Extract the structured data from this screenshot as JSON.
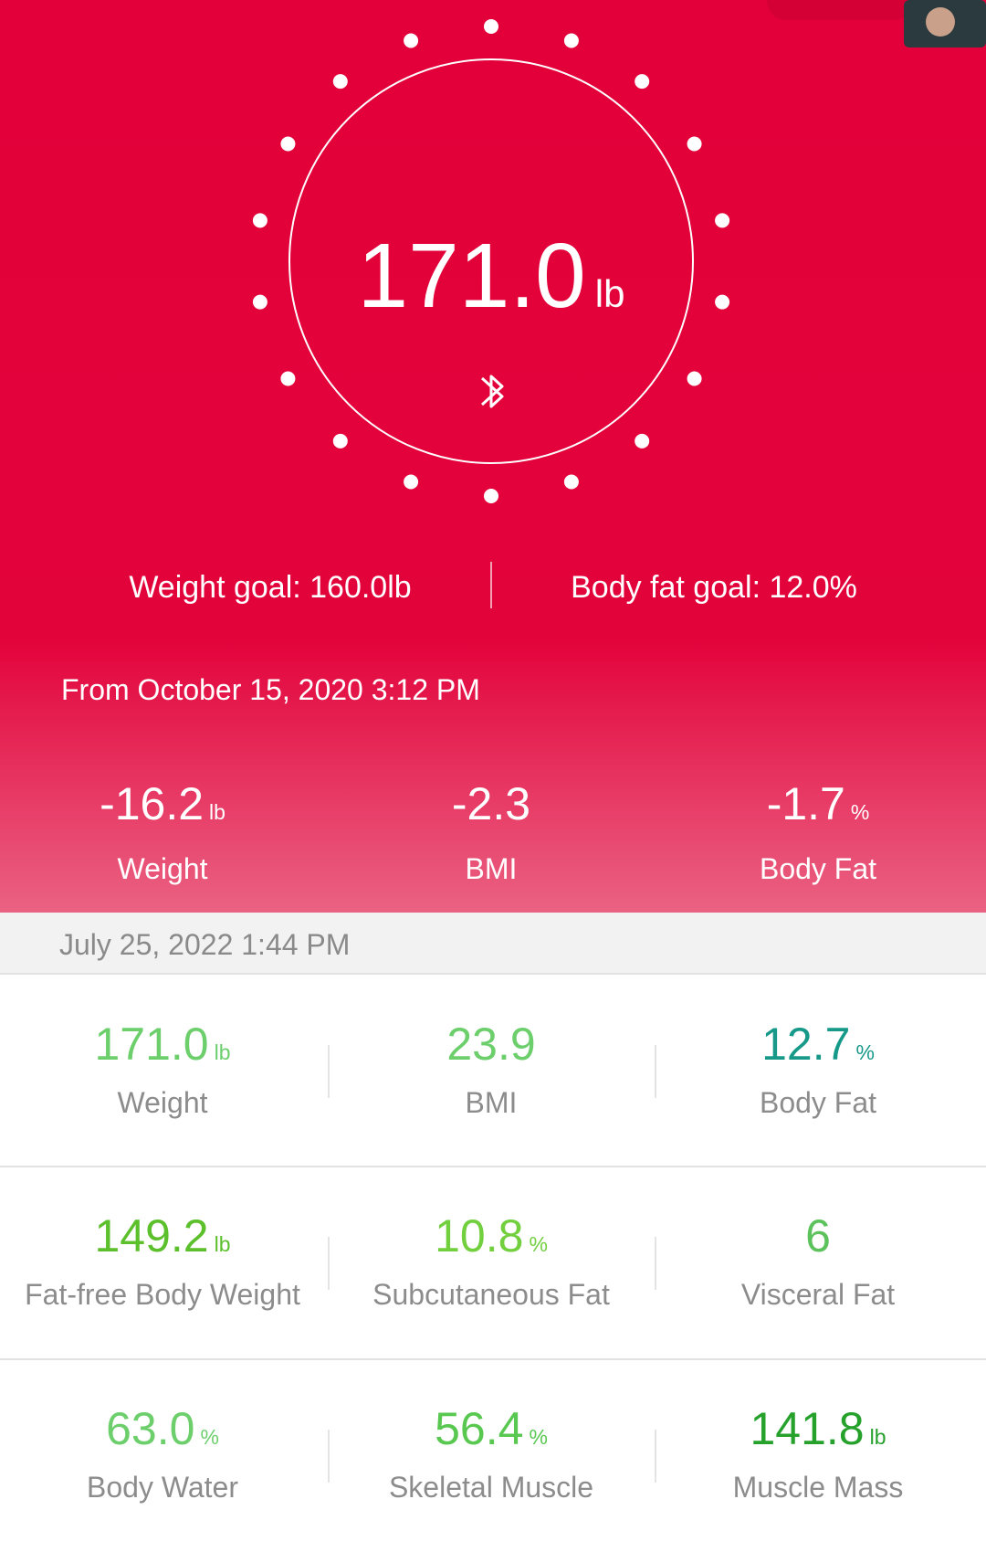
{
  "header": {
    "weight": "171.0",
    "unit": "lb",
    "weight_goal": "Weight goal: 160.0lb",
    "body_fat_goal": "Body fat goal: 12.0%",
    "from": "From October 15, 2020 3:12 PM",
    "changes": [
      {
        "value": "-16.2",
        "unit": "lb",
        "label": "Weight"
      },
      {
        "value": "-2.3",
        "label": "BMI"
      },
      {
        "value": "-1.7",
        "unit": "%",
        "label": "Body Fat"
      }
    ]
  },
  "record": {
    "date": "July 25, 2022 1:44 PM",
    "metrics": [
      {
        "value": "171.0",
        "unit": "lb",
        "label": "Weight",
        "color": "#6ccf6c"
      },
      {
        "value": "23.9",
        "label": "BMI",
        "color": "#6ccf6c"
      },
      {
        "value": "12.7",
        "unit": "%",
        "label": "Body Fat",
        "color": "#17998a"
      },
      {
        "value": "149.2",
        "unit": "lb",
        "label": "Fat-free Body Weight",
        "color": "#5cc02c"
      },
      {
        "value": "10.8",
        "unit": "%",
        "label": "Subcutaneous Fat",
        "color": "#72cf3e"
      },
      {
        "value": "6",
        "label": "Visceral Fat",
        "color": "#5cc25c"
      },
      {
        "value": "63.0",
        "unit": "%",
        "label": "Body Water",
        "color": "#6ccf6c"
      },
      {
        "value": "56.4",
        "unit": "%",
        "label": "Skeletal Muscle",
        "color": "#58c850"
      },
      {
        "value": "141.8",
        "unit": "lb",
        "label": "Muscle Mass",
        "color": "#26a12c"
      }
    ]
  }
}
